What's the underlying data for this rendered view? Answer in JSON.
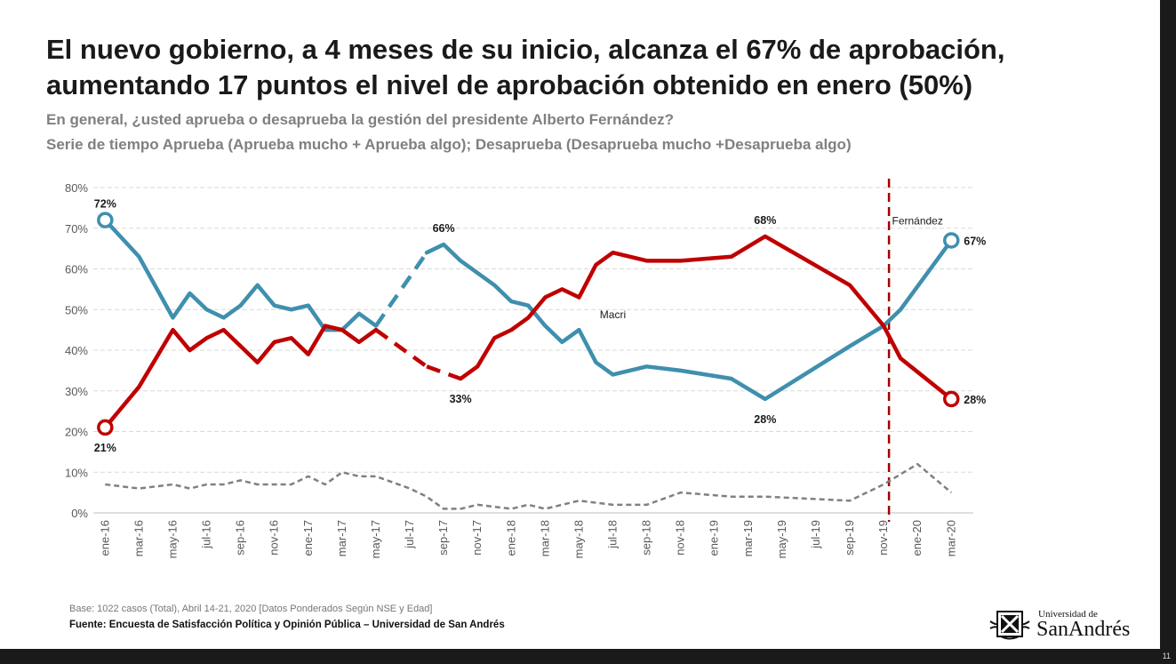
{
  "slide": {
    "title_line1": "El nuevo gobierno, a 4 meses de su inicio, alcanza el 67% de aprobación,",
    "title_line2": "aumentando 17 puntos el nivel de aprobación obtenido en enero (50%)",
    "subtitle_line1": "En general, ¿usted aprueba o desaprueba la gestión del presidente Alberto Fernández?",
    "subtitle_line2": "Serie de tiempo Aprueba (Aprueba mucho + Aprueba algo); Desaprueba (Desaprueba mucho +Desaprueba algo)",
    "base_note": "Base: 1022 casos (Total), Abril 14-21, 2020 [Datos Ponderados Según NSE y Edad]",
    "source_note": "Fuente: Encuesta de Satisfacción Política y Opinión Pública – Universidad de San Andrés",
    "logo_small": "Universidad de",
    "logo_big": "SanAndrés",
    "page_number": "11"
  },
  "chart_data": {
    "type": "line",
    "ylim": [
      0,
      80
    ],
    "y_ticks": [
      "0%",
      "10%",
      "20%",
      "30%",
      "40%",
      "50%",
      "60%",
      "70%",
      "80%"
    ],
    "x_tick_labels": [
      "ene-16",
      "mar-16",
      "may-16",
      "jul-16",
      "sep-16",
      "nov-16",
      "ene-17",
      "mar-17",
      "may-17",
      "jul-17",
      "sep-17",
      "nov-17",
      "ene-18",
      "mar-18",
      "may-18",
      "jul-18",
      "sep-18",
      "nov-18",
      "ene-19",
      "mar-19",
      "may-19",
      "jul-19",
      "sep-19",
      "nov-19",
      "ene-20",
      "mar-20"
    ],
    "grid": true,
    "colors": {
      "aprueba": "#3f8fae",
      "desaprueba": "#c00000",
      "nsnc": "#808080",
      "divider": "#a30000",
      "grid": "#d9d9d9",
      "axis": "#bfbfbf"
    },
    "series": [
      {
        "key": "aprueba",
        "points": [
          [
            "ene-16",
            72
          ],
          [
            "mar-16",
            63
          ],
          [
            "may-16",
            48
          ],
          [
            "jun-16",
            54
          ],
          [
            "jul-16",
            50
          ],
          [
            "ago-16",
            48
          ],
          [
            "sep-16",
            51
          ],
          [
            "oct-16",
            56
          ],
          [
            "nov-16",
            51
          ],
          [
            "dic-16",
            50
          ],
          [
            "ene-17",
            51
          ],
          [
            "feb-17",
            45
          ],
          [
            "mar-17",
            45
          ],
          [
            "abr-17",
            49
          ],
          [
            "may-17",
            46
          ],
          [
            "ago-17",
            64
          ],
          [
            "sep-17",
            66
          ],
          [
            "oct-17",
            62
          ],
          [
            "dic-17",
            56
          ],
          [
            "ene-18",
            52
          ],
          [
            "feb-18",
            51
          ],
          [
            "mar-18",
            46
          ],
          [
            "abr-18",
            42
          ],
          [
            "may-18",
            45
          ],
          [
            "jun-18",
            37
          ],
          [
            "jul-18",
            34
          ],
          [
            "sep-18",
            36
          ],
          [
            "nov-18",
            35
          ],
          [
            "feb-19",
            33
          ],
          [
            "abr-19",
            28
          ],
          [
            "sep-19",
            41
          ],
          [
            "nov-19",
            46
          ],
          [
            "dic-19",
            50
          ],
          [
            "mar-20",
            67
          ]
        ],
        "dashed_segments": [
          [
            14,
            15
          ]
        ]
      },
      {
        "key": "desaprueba",
        "points": [
          [
            "ene-16",
            21
          ],
          [
            "mar-16",
            31
          ],
          [
            "may-16",
            45
          ],
          [
            "jun-16",
            40
          ],
          [
            "jul-16",
            43
          ],
          [
            "ago-16",
            45
          ],
          [
            "oct-16",
            37
          ],
          [
            "nov-16",
            42
          ],
          [
            "dic-16",
            43
          ],
          [
            "ene-17",
            39
          ],
          [
            "feb-17",
            46
          ],
          [
            "mar-17",
            45
          ],
          [
            "abr-17",
            42
          ],
          [
            "may-17",
            45
          ],
          [
            "ago-17",
            36
          ],
          [
            "oct-17",
            33
          ],
          [
            "nov-17",
            36
          ],
          [
            "dic-17",
            43
          ],
          [
            "ene-18",
            45
          ],
          [
            "feb-18",
            48
          ],
          [
            "mar-18",
            53
          ],
          [
            "abr-18",
            55
          ],
          [
            "may-18",
            53
          ],
          [
            "jun-18",
            61
          ],
          [
            "jul-18",
            64
          ],
          [
            "sep-18",
            62
          ],
          [
            "nov-18",
            62
          ],
          [
            "feb-19",
            63
          ],
          [
            "abr-19",
            68
          ],
          [
            "sep-19",
            56
          ],
          [
            "nov-19",
            46
          ],
          [
            "dic-19",
            38
          ],
          [
            "mar-20",
            28
          ]
        ],
        "dashed_segments": [
          [
            13,
            14
          ],
          [
            14,
            15
          ]
        ]
      },
      {
        "key": "nsnc",
        "points": [
          [
            "ene-16",
            7
          ],
          [
            "mar-16",
            6
          ],
          [
            "may-16",
            7
          ],
          [
            "jun-16",
            6
          ],
          [
            "jul-16",
            7
          ],
          [
            "ago-16",
            7
          ],
          [
            "sep-16",
            8
          ],
          [
            "oct-16",
            7
          ],
          [
            "dic-16",
            7
          ],
          [
            "ene-17",
            9
          ],
          [
            "feb-17",
            7
          ],
          [
            "mar-17",
            10
          ],
          [
            "abr-17",
            9
          ],
          [
            "may-17",
            9
          ],
          [
            "jul-17",
            6
          ],
          [
            "ago-17",
            4
          ],
          [
            "sep-17",
            1
          ],
          [
            "oct-17",
            1
          ],
          [
            "nov-17",
            2
          ],
          [
            "ene-18",
            1
          ],
          [
            "feb-18",
            2
          ],
          [
            "mar-18",
            1
          ],
          [
            "may-18",
            3
          ],
          [
            "jul-18",
            2
          ],
          [
            "sep-18",
            2
          ],
          [
            "nov-18",
            5
          ],
          [
            "feb-19",
            4
          ],
          [
            "abr-19",
            4
          ],
          [
            "sep-19",
            3
          ],
          [
            "nov-19",
            7
          ],
          [
            "ene-20",
            12
          ],
          [
            "mar-20",
            5
          ]
        ],
        "style": "dashed"
      }
    ],
    "endpoint_markers": [
      {
        "series": "aprueba",
        "point": [
          "ene-16",
          72
        ]
      },
      {
        "series": "aprueba",
        "point": [
          "mar-20",
          67
        ]
      },
      {
        "series": "desaprueba",
        "point": [
          "ene-16",
          21
        ]
      },
      {
        "series": "desaprueba",
        "point": [
          "mar-20",
          28
        ]
      }
    ],
    "data_labels": [
      {
        "series": "aprueba",
        "point": [
          "ene-16",
          72
        ],
        "text": "72%",
        "pos": "above"
      },
      {
        "series": "desaprueba",
        "point": [
          "ene-16",
          21
        ],
        "text": "21%",
        "pos": "below"
      },
      {
        "series": "aprueba",
        "point": [
          "sep-17",
          66
        ],
        "text": "66%",
        "pos": "above"
      },
      {
        "series": "desaprueba",
        "point": [
          "oct-17",
          33
        ],
        "text": "33%",
        "pos": "below"
      },
      {
        "series": "desaprueba",
        "point": [
          "abr-19",
          68
        ],
        "text": "68%",
        "pos": "above"
      },
      {
        "series": "aprueba",
        "point": [
          "abr-19",
          28
        ],
        "text": "28%",
        "pos": "below"
      },
      {
        "series": "aprueba",
        "point": [
          "mar-20",
          67
        ],
        "text": "67%",
        "pos": "right"
      },
      {
        "series": "desaprueba",
        "point": [
          "mar-20",
          28
        ],
        "text": "28%",
        "pos": "right"
      }
    ],
    "annotations": [
      {
        "text": "Macri",
        "x": "jul-18",
        "y": 49
      },
      {
        "text": "Fernández",
        "x": "ene-20",
        "y": 72
      }
    ],
    "vertical_marker": {
      "x": "nov-19",
      "style": "dashed"
    }
  }
}
